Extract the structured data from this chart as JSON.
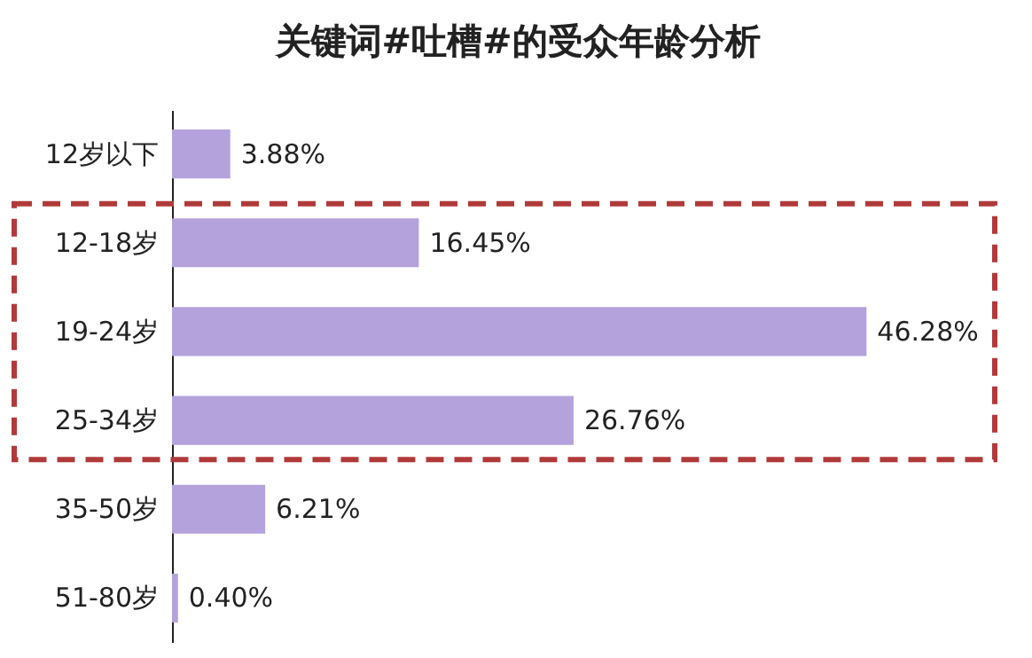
{
  "chart_data": {
    "type": "bar",
    "orientation": "horizontal",
    "title": "关键词#吐槽#的受众年龄分析",
    "categories": [
      "12岁以下",
      "12-18岁",
      "19-24岁",
      "25-34岁",
      "35-50岁",
      "51-80岁"
    ],
    "values": [
      3.88,
      16.45,
      46.28,
      26.76,
      6.21,
      0.4
    ],
    "value_labels": [
      "3.88%",
      "16.45%",
      "46.28%",
      "26.76%",
      "6.21%",
      "0.40%"
    ],
    "color": "#b3a2dc",
    "grid": false
  }
}
